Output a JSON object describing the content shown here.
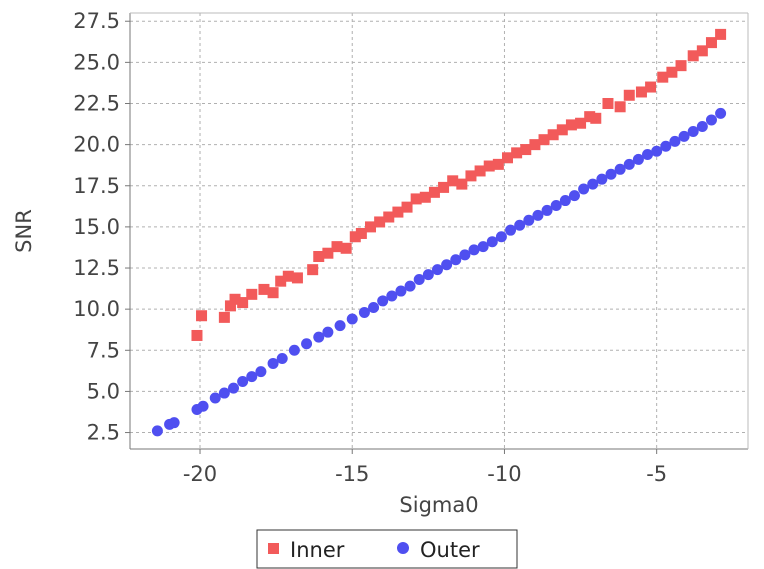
{
  "chart_data": {
    "type": "scatter",
    "title": "",
    "xlabel": "Sigma0",
    "ylabel": "SNR",
    "xlim": [
      -22.3,
      -2.0
    ],
    "ylim": [
      1.5,
      28.0
    ],
    "xticks": [
      -20,
      -15,
      -10,
      -5
    ],
    "xtick_labels": [
      "-20",
      "-15",
      "-10",
      "-5"
    ],
    "yticks": [
      2.5,
      5.0,
      7.5,
      10.0,
      12.5,
      15.0,
      17.5,
      20.0,
      22.5,
      25.0,
      27.5
    ],
    "ytick_labels": [
      "2.5",
      "5.0",
      "7.5",
      "10.0",
      "12.5",
      "15.0",
      "17.5",
      "20.0",
      "22.5",
      "25.0",
      "27.5"
    ],
    "grid": true,
    "legend_position": "bottom-center",
    "series": [
      {
        "name": "Inner",
        "marker": "square",
        "color": "#f25a5a",
        "x": [
          -20.1,
          -19.95,
          -19.2,
          -19.0,
          -18.85,
          -18.6,
          -18.3,
          -17.9,
          -17.6,
          -17.35,
          -17.1,
          -16.8,
          -16.3,
          -16.1,
          -15.8,
          -15.5,
          -15.2,
          -14.9,
          -14.7,
          -14.4,
          -14.1,
          -13.8,
          -13.5,
          -13.2,
          -12.9,
          -12.6,
          -12.3,
          -12.0,
          -11.7,
          -11.4,
          -11.1,
          -10.8,
          -10.5,
          -10.2,
          -9.9,
          -9.6,
          -9.3,
          -9.0,
          -8.7,
          -8.4,
          -8.1,
          -7.8,
          -7.5,
          -7.2,
          -7.0,
          -6.6,
          -6.2,
          -5.9,
          -5.5,
          -5.2,
          -4.8,
          -4.5,
          -4.2,
          -3.8,
          -3.5,
          -3.2,
          -2.9
        ],
        "y": [
          8.4,
          9.6,
          9.5,
          10.2,
          10.6,
          10.4,
          10.9,
          11.2,
          11.0,
          11.7,
          12.0,
          11.9,
          12.4,
          13.2,
          13.4,
          13.8,
          13.7,
          14.4,
          14.6,
          15.0,
          15.3,
          15.6,
          15.9,
          16.2,
          16.7,
          16.8,
          17.1,
          17.4,
          17.8,
          17.6,
          18.1,
          18.4,
          18.7,
          18.8,
          19.2,
          19.5,
          19.7,
          20.0,
          20.3,
          20.6,
          20.9,
          21.2,
          21.3,
          21.7,
          21.6,
          22.5,
          22.3,
          23.0,
          23.2,
          23.5,
          24.1,
          24.4,
          24.8,
          25.4,
          25.7,
          26.2,
          26.7
        ]
      },
      {
        "name": "Outer",
        "marker": "circle",
        "color": "#4f4ff0",
        "x": [
          -21.4,
          -21.0,
          -20.85,
          -20.1,
          -19.9,
          -19.5,
          -19.2,
          -18.9,
          -18.6,
          -18.3,
          -18.0,
          -17.6,
          -17.3,
          -16.9,
          -16.5,
          -16.1,
          -15.8,
          -15.4,
          -15.0,
          -14.6,
          -14.3,
          -14.0,
          -13.7,
          -13.4,
          -13.1,
          -12.8,
          -12.5,
          -12.2,
          -11.9,
          -11.6,
          -11.3,
          -11.0,
          -10.7,
          -10.4,
          -10.1,
          -9.8,
          -9.5,
          -9.2,
          -8.9,
          -8.6,
          -8.3,
          -8.0,
          -7.7,
          -7.4,
          -7.1,
          -6.8,
          -6.5,
          -6.2,
          -5.9,
          -5.6,
          -5.3,
          -5.0,
          -4.7,
          -4.4,
          -4.1,
          -3.8,
          -3.5,
          -3.2,
          -2.9
        ],
        "y": [
          2.6,
          3.0,
          3.1,
          3.9,
          4.1,
          4.6,
          4.9,
          5.2,
          5.6,
          5.9,
          6.2,
          6.7,
          7.0,
          7.5,
          7.9,
          8.3,
          8.6,
          9.0,
          9.4,
          9.8,
          10.1,
          10.5,
          10.8,
          11.1,
          11.4,
          11.8,
          12.1,
          12.4,
          12.7,
          13.0,
          13.3,
          13.6,
          13.8,
          14.1,
          14.4,
          14.8,
          15.1,
          15.4,
          15.7,
          16.0,
          16.3,
          16.6,
          16.9,
          17.3,
          17.6,
          17.9,
          18.2,
          18.5,
          18.8,
          19.1,
          19.4,
          19.6,
          19.9,
          20.2,
          20.5,
          20.8,
          21.1,
          21.5,
          21.9
        ]
      }
    ]
  }
}
